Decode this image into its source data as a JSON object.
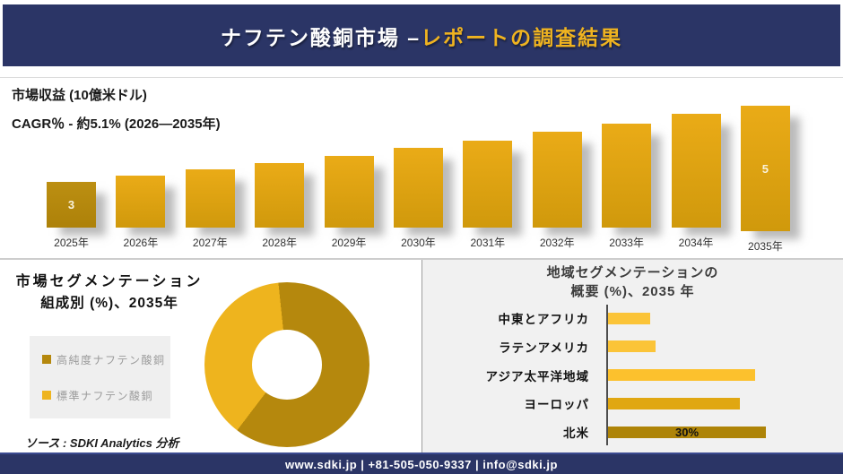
{
  "header": {
    "title_main": "ナフテン酸銅市場 –",
    "title_accent": "レポートの調査結果"
  },
  "segmentation": {
    "title_line1": "市場セグメンテーション",
    "title_line2": "組成別 (%)、2035年"
  },
  "region": {
    "title_line1": "地域セグメンテーションの",
    "title_line2": "概要 (%)、2035 年"
  },
  "source_note": "ソース : SDKI Analytics 分析",
  "footer": {
    "contact": "www.sdki.jp | +81-505-050-9337 | info@sdki.jp"
  },
  "colors": {
    "navy": "#2b3566",
    "accent_gold": "#efb320",
    "bar_gradient_top": "#eaab17",
    "bar_gradient_bottom": "#d0990c",
    "bar_first_year": "#b5880d",
    "panel_gray": "#f1f1f1",
    "legend_box": "#efefef",
    "legend_text": "#9b9b9b",
    "axis_line": "#4d4d4d"
  },
  "chart_data": [
    {
      "id": "revenue_bars",
      "type": "bar",
      "title": "市場収益 (10億米ドル)",
      "subtitle": "CAGR％ - 約5.1% (2026―2035年)",
      "categories": [
        "2025年",
        "2026年",
        "2027年",
        "2028年",
        "2029年",
        "2030年",
        "2031年",
        "2032年",
        "2033年",
        "2034年",
        "2035年"
      ],
      "values": [
        3,
        3.15,
        3.31,
        3.48,
        3.66,
        3.85,
        4.04,
        4.25,
        4.47,
        4.7,
        5
      ],
      "data_labels": {
        "0": "3",
        "10": "5"
      },
      "ylim": [
        1.86,
        5
      ],
      "grid": false,
      "legend_position": "none"
    },
    {
      "id": "composition_donut",
      "type": "pie",
      "donut": true,
      "title": "市場セグメンテーション 組成別 (%)、2035年",
      "labels": [
        "高純度ナフテン酸銅",
        "標準ナフテン酸銅"
      ],
      "values": [
        62,
        38
      ],
      "colors": [
        "#b5880d",
        "#eeb41e"
      ],
      "start_angle_deg": -6,
      "legend_position": "left"
    },
    {
      "id": "region_bars",
      "type": "bar",
      "orientation": "horizontal",
      "title": "地域セグメンテーションの 概要 (%)、2035 年",
      "categories": [
        "中東とアフリカ",
        "ラテンアメリカ",
        "アジア太平洋地域",
        "ヨーロッパ",
        "北米"
      ],
      "values": [
        8,
        9,
        28,
        25,
        30
      ],
      "colors": [
        "#fbc438",
        "#fbc438",
        "#fcc12d",
        "#e0a712",
        "#ae8408"
      ],
      "data_labels": {
        "4": "30%"
      },
      "xlim": [
        0,
        43
      ],
      "grid": false
    }
  ]
}
